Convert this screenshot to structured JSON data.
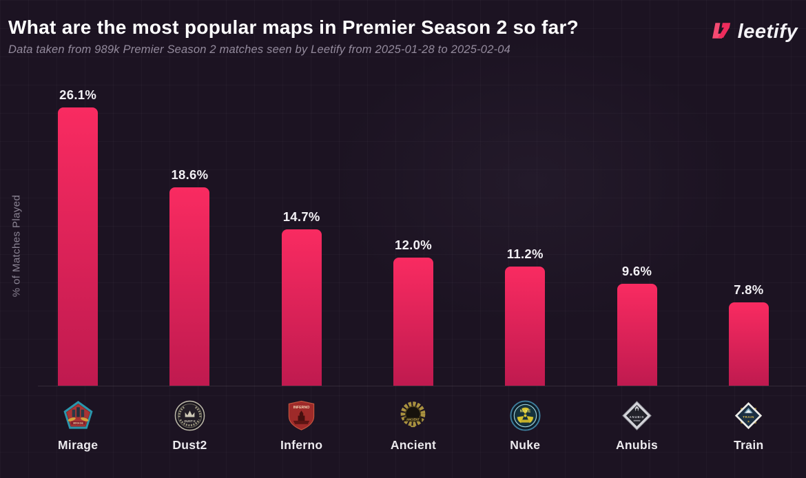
{
  "header": {
    "title": "What are the most popular maps in Premier Season 2 so far?",
    "subtitle": "Data taken from 989k Premier Season 2 matches seen by Leetify from 2025-01-28 to 2025-02-04",
    "brand": "leetify"
  },
  "chart_data": {
    "type": "bar",
    "title": "What are the most popular maps in Premier Season 2 so far?",
    "xlabel": "",
    "ylabel": "% of Matches Played",
    "categories": [
      "Mirage",
      "Dust2",
      "Inferno",
      "Ancient",
      "Nuke",
      "Anubis",
      "Train"
    ],
    "values": [
      26.1,
      18.6,
      14.7,
      12.0,
      11.2,
      9.6,
      7.8
    ],
    "labels": [
      "26.1%",
      "18.6%",
      "14.7%",
      "12.0%",
      "11.2%",
      "9.6%",
      "7.8%"
    ],
    "ylim": [
      0,
      30
    ],
    "grid": "faint background grid, no axis ticks",
    "legend": "none",
    "bar_color_top": "#f92b61",
    "bar_color_bottom": "#bf1a4f"
  },
  "icons": {
    "mirage": {
      "text": "MIRAGE"
    },
    "dust2": {
      "text": "DUST II"
    },
    "inferno": {
      "text": "INFERNO"
    },
    "ancient": {
      "text": "ANCIENT"
    },
    "nuke": {
      "text": "NUKE"
    },
    "anubis": {
      "text": "ANUBIS"
    },
    "train": {
      "text": "TRAIN"
    }
  },
  "colors": {
    "background": "#1c1322",
    "accent_pink": "#f23a64",
    "title_text": "#ffffff",
    "subtitle_text": "#948b9d",
    "axis_label_text": "#8b8494",
    "value_label_text": "#f2f0f4"
  }
}
